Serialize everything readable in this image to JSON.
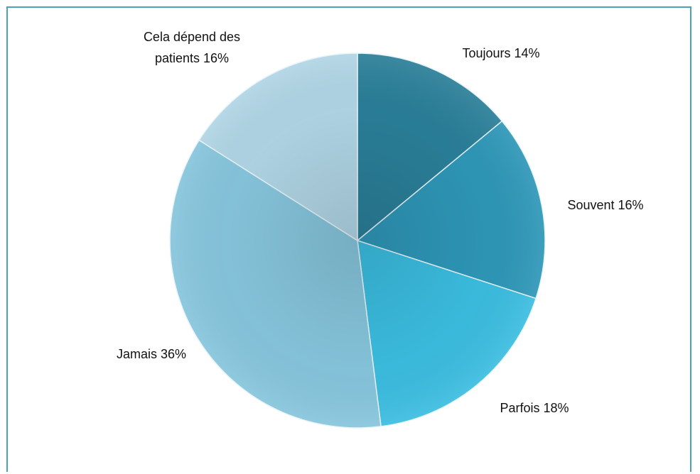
{
  "chart_data": {
    "type": "pie",
    "categories": [
      "Toujours",
      "Souvent",
      "Parfois",
      "Jamais",
      "Cela dépend des patients"
    ],
    "values": [
      14,
      16,
      18,
      36,
      16
    ],
    "value_labels": [
      "14%",
      "16%",
      "18%",
      "36%",
      "16%"
    ],
    "colors": [
      "#2a7f99",
      "#2e97b8",
      "#3bbde0",
      "#86c5dc",
      "#b0d5e5"
    ]
  }
}
